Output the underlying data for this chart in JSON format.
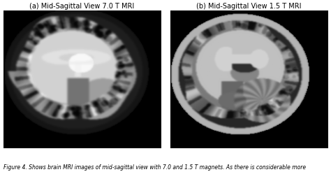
{
  "title_a": "(a) Mid-Sagittal View 7.0 T MRI",
  "title_b": "(b) Mid-Sagittal View 1.5 T MRI",
  "caption": "Figure 4. Shows brain MRI images of mid-sagittal view with 7.0 and 1.5 T magnets. As there is considerable more",
  "bg_color": "#ffffff",
  "title_fontsize": 7.0,
  "caption_fontsize": 5.5,
  "figsize": [
    4.74,
    2.46
  ],
  "dpi": 100
}
